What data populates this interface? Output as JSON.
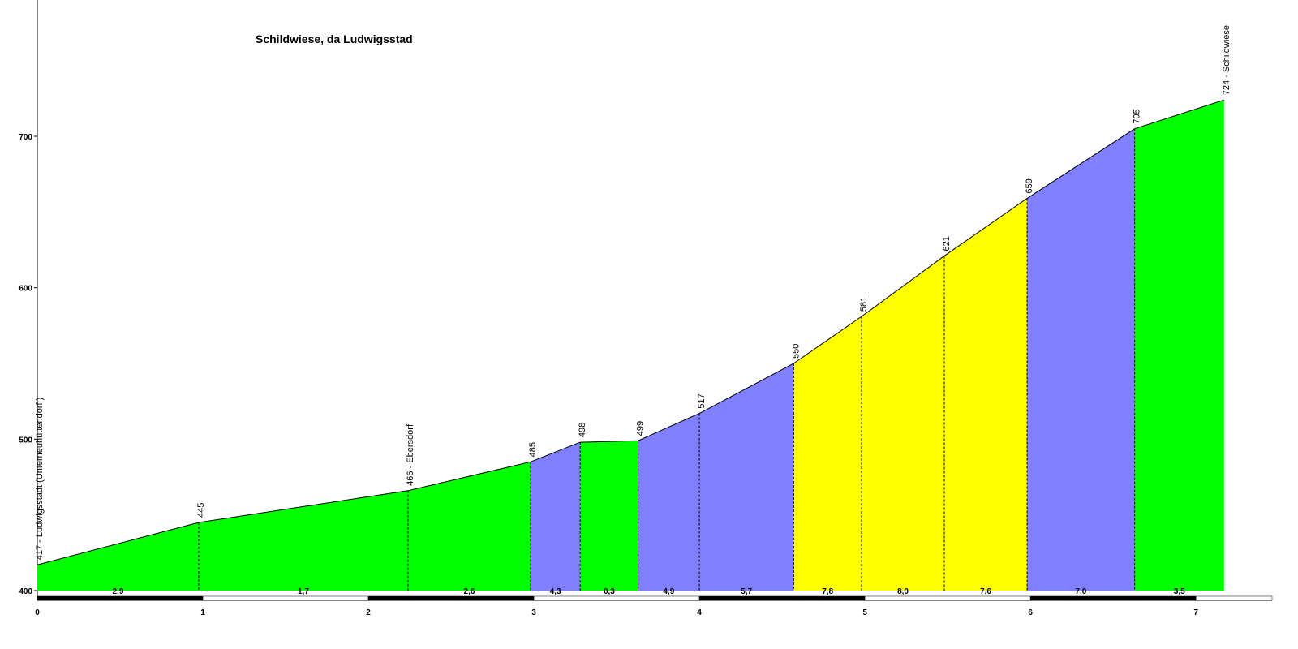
{
  "chart_data": {
    "type": "elevation-profile",
    "title": "Schildwiese, da Ludwigsstad",
    "x": [
      0,
      0.975,
      2.24,
      2.98,
      3.28,
      3.63,
      4.0,
      4.57,
      4.98,
      5.48,
      5.98,
      6.63,
      7.17
    ],
    "values": [
      417,
      445,
      466,
      485,
      498,
      499,
      517,
      550,
      581,
      621,
      659,
      705,
      724
    ],
    "value_labels": [
      "417 - Ludwigsstadt (Unterneuhüttendorf )",
      "445",
      "466 - Ebersdorf",
      "485",
      "498",
      "499",
      "517",
      "550",
      "581",
      "621",
      "659",
      "705",
      "724 - Schildwiese"
    ],
    "segments": {
      "values": [
        2.9,
        1.7,
        2.6,
        4.3,
        0.3,
        4.9,
        5.7,
        7.8,
        8.0,
        7.6,
        7.0,
        3.5
      ],
      "value_labels": [
        "2,9",
        "1,7",
        "2,6",
        "4,3",
        "0,3",
        "4,9",
        "5,7",
        "7,8",
        "8,0",
        "7,6",
        "7,0",
        "3,5"
      ],
      "colors": [
        "#00ff00",
        "#00ff00",
        "#00ff00",
        "#8080ff",
        "#00ff00",
        "#8080ff",
        "#8080ff",
        "#ffff00",
        "#ffff00",
        "#ffff00",
        "#8080ff",
        "#00ff00"
      ]
    },
    "xlim": [
      0,
      7.46
    ],
    "xticks": [
      0,
      1,
      2,
      3,
      4,
      5,
      6,
      7
    ],
    "ylim": [
      400,
      790
    ],
    "yticks": [
      400,
      500,
      600,
      700
    ]
  }
}
